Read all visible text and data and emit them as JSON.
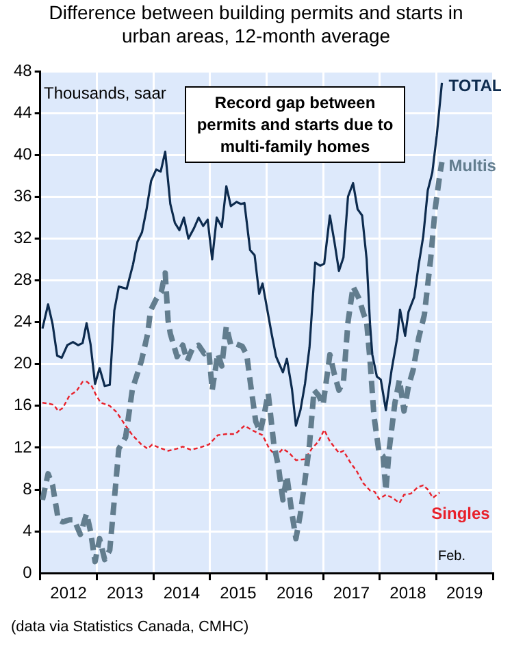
{
  "chart_data": {
    "type": "line",
    "title": "Difference between building permits and starts in urban areas, 12-month average",
    "annotations": [
      "Thousands, saar",
      "Record gap between permits and starts due to multi-family homes",
      "Feb.",
      "(data via Statistics Canada, CMHC)"
    ],
    "xlim": [
      2012,
      2020
    ],
    "xticks": [
      {
        "value": 2012,
        "label": null
      },
      {
        "value": 2012.5,
        "label": "2012"
      },
      {
        "value": 2013,
        "label": null
      },
      {
        "value": 2013.5,
        "label": "2013"
      },
      {
        "value": 2014,
        "label": null
      },
      {
        "value": 2014.5,
        "label": "2014"
      },
      {
        "value": 2015,
        "label": null
      },
      {
        "value": 2015.5,
        "label": "2015"
      },
      {
        "value": 2016,
        "label": null
      },
      {
        "value": 2016.5,
        "label": "2016"
      },
      {
        "value": 2017,
        "label": null
      },
      {
        "value": 2017.5,
        "label": "2017"
      },
      {
        "value": 2018,
        "label": null
      },
      {
        "value": 2018.5,
        "label": "2018"
      },
      {
        "value": 2019,
        "label": null
      },
      {
        "value": 2019.5,
        "label": "2019"
      },
      {
        "value": 2020,
        "label": null
      }
    ],
    "ylim": [
      0,
      48
    ],
    "yticks": [
      0,
      4,
      8,
      12,
      16,
      20,
      24,
      28,
      32,
      36,
      40,
      44,
      48
    ],
    "grid": true,
    "legend": false,
    "marker": "none",
    "series": [
      {
        "name": "TOTAL",
        "color": "#0d2b4e",
        "line_style": "solid",
        "x": [
          2012.04,
          2012.14,
          2012.22,
          2012.3,
          2012.38,
          2012.48,
          2012.58,
          2012.67,
          2012.75,
          2012.82,
          2012.89,
          2012.97,
          2013.05,
          2013.14,
          2013.23,
          2013.31,
          2013.39,
          2013.53,
          2013.64,
          2013.72,
          2013.8,
          2013.88,
          2013.96,
          2014.05,
          2014.13,
          2014.21,
          2014.3,
          2014.38,
          2014.46,
          2014.54,
          2014.62,
          2014.72,
          2014.8,
          2014.88,
          2014.96,
          2015.04,
          2015.12,
          2015.21,
          2015.29,
          2015.37,
          2015.47,
          2015.55,
          2015.61,
          2015.71,
          2015.79,
          2015.87,
          2015.93,
          2016.09,
          2016.17,
          2016.29,
          2016.36,
          2016.45,
          2016.52,
          2016.6,
          2016.68,
          2016.76,
          2016.86,
          2016.95,
          2017.02,
          2017.12,
          2017.2,
          2017.28,
          2017.36,
          2017.44,
          2017.53,
          2017.61,
          2017.69,
          2017.77,
          2017.83,
          2017.87,
          2017.95,
          2018.02,
          2018.11,
          2018.21,
          2018.31,
          2018.36,
          2018.45,
          2018.51,
          2018.61,
          2018.69,
          2018.77,
          2018.85,
          2018.93,
          2019.01,
          2019.1
        ],
        "values": [
          23.4,
          25.7,
          23.8,
          20.8,
          20.6,
          21.8,
          22.1,
          21.8,
          22.0,
          23.9,
          21.9,
          18.1,
          19.6,
          17.9,
          18.0,
          25.1,
          27.4,
          27.2,
          29.5,
          31.7,
          32.6,
          34.8,
          37.5,
          38.6,
          38.4,
          40.3,
          35.3,
          33.5,
          32.8,
          34.0,
          32.0,
          33.0,
          34.0,
          33.2,
          33.8,
          30.0,
          34.0,
          33.1,
          37.0,
          35.1,
          35.5,
          35.3,
          35.4,
          30.9,
          30.4,
          26.7,
          27.7,
          22.9,
          20.7,
          19.2,
          20.5,
          17.6,
          14.1,
          15.6,
          18.1,
          21.6,
          29.7,
          29.4,
          29.6,
          34.2,
          31.7,
          28.9,
          30.2,
          36.0,
          37.3,
          34.8,
          34.2,
          30.0,
          23.8,
          20.9,
          18.8,
          18.5,
          15.6,
          19.4,
          22.5,
          25.2,
          22.7,
          25.0,
          26.4,
          29.5,
          32.2,
          36.6,
          38.3,
          41.9,
          46.9
        ]
      },
      {
        "name": "Multis",
        "color": "#627d8e",
        "line_style": "dashed",
        "x": [
          2012.04,
          2012.14,
          2012.22,
          2012.32,
          2012.4,
          2012.52,
          2012.6,
          2012.71,
          2012.82,
          2012.89,
          2012.97,
          2013.05,
          2013.14,
          2013.23,
          2013.31,
          2013.39,
          2013.51,
          2013.63,
          2013.79,
          2013.9,
          2013.95,
          2014.05,
          2014.14,
          2014.21,
          2014.26,
          2014.3,
          2014.42,
          2014.52,
          2014.6,
          2014.7,
          2014.8,
          2014.9,
          2014.98,
          2015.04,
          2015.14,
          2015.21,
          2015.29,
          2015.37,
          2015.47,
          2015.57,
          2015.65,
          2015.73,
          2015.81,
          2015.89,
          2015.97,
          2016.03,
          2016.13,
          2016.21,
          2016.29,
          2016.36,
          2016.45,
          2016.52,
          2016.6,
          2016.68,
          2016.76,
          2016.84,
          2016.92,
          2017.0,
          2017.12,
          2017.2,
          2017.28,
          2017.36,
          2017.44,
          2017.53,
          2017.64,
          2017.71,
          2017.77,
          2017.83,
          2017.9,
          2017.99,
          2018.06,
          2018.11,
          2018.17,
          2018.27,
          2018.35,
          2018.43,
          2018.51,
          2018.59,
          2018.69,
          2018.79,
          2018.9,
          2018.98,
          2019.06,
          2019.1
        ],
        "values": [
          7.0,
          9.5,
          8.4,
          5.1,
          4.9,
          5.1,
          5.1,
          3.7,
          5.7,
          4.0,
          1.1,
          3.3,
          1.3,
          2.2,
          7.0,
          11.9,
          13.0,
          17.6,
          20.3,
          22.9,
          25.1,
          26.2,
          26.9,
          28.7,
          24.2,
          22.9,
          20.7,
          21.8,
          20.3,
          21.6,
          21.8,
          21.0,
          21.3,
          17.5,
          21.0,
          19.8,
          23.6,
          21.8,
          21.9,
          21.7,
          20.9,
          17.6,
          14.5,
          13.5,
          15.5,
          17.2,
          12.3,
          10.2,
          7.0,
          9.3,
          5.7,
          3.3,
          5.7,
          8.9,
          12.3,
          17.5,
          17.0,
          16.1,
          20.9,
          19.0,
          17.5,
          18.3,
          24.0,
          27.4,
          26.2,
          24.9,
          24.0,
          20.3,
          15.0,
          11.5,
          11.2,
          7.9,
          11.9,
          16.3,
          18.5,
          15.5,
          17.9,
          19.4,
          22.5,
          24.7,
          30.0,
          34.8,
          38.0,
          39.3
        ]
      },
      {
        "name": "Singles",
        "color": "#e8202a",
        "line_style": "dashed",
        "x": [
          2012.04,
          2012.16,
          2012.24,
          2012.32,
          2012.4,
          2012.52,
          2012.64,
          2012.75,
          2012.83,
          2012.91,
          2012.99,
          2013.07,
          2013.23,
          2013.35,
          2013.51,
          2013.63,
          2013.79,
          2013.9,
          2013.98,
          2014.1,
          2014.26,
          2014.42,
          2014.52,
          2014.66,
          2014.82,
          2014.98,
          2015.14,
          2015.29,
          2015.45,
          2015.61,
          2015.77,
          2015.93,
          2016.05,
          2016.17,
          2016.29,
          2016.4,
          2016.52,
          2016.68,
          2016.8,
          2016.92,
          2017.02,
          2017.12,
          2017.28,
          2017.36,
          2017.48,
          2017.6,
          2017.71,
          2017.83,
          2017.91,
          2017.99,
          2018.11,
          2018.23,
          2018.35,
          2018.43,
          2018.55,
          2018.67,
          2018.77,
          2018.85,
          2018.94,
          2019.06
        ],
        "values": [
          16.3,
          16.2,
          16.1,
          15.5,
          15.8,
          17.0,
          17.4,
          18.3,
          18.3,
          17.9,
          17.0,
          16.3,
          16.0,
          15.4,
          14.1,
          13.2,
          12.3,
          11.9,
          12.3,
          12.0,
          11.7,
          11.9,
          12.1,
          11.8,
          12.0,
          12.3,
          13.2,
          13.3,
          13.3,
          14.1,
          13.6,
          13.2,
          11.9,
          11.2,
          11.9,
          11.5,
          10.8,
          10.9,
          11.9,
          12.6,
          13.7,
          12.6,
          11.5,
          11.7,
          10.6,
          9.7,
          8.6,
          7.9,
          7.8,
          7.1,
          7.5,
          7.2,
          6.7,
          7.5,
          7.6,
          8.2,
          8.4,
          8.0,
          7.2,
          7.7
        ]
      }
    ]
  }
}
